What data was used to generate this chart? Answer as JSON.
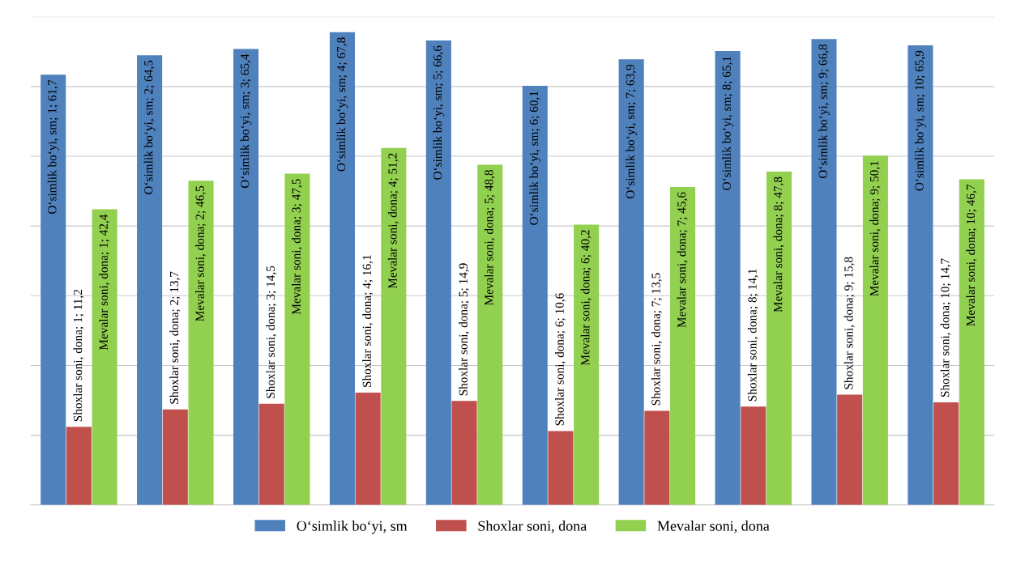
{
  "chart_data": {
    "type": "bar",
    "categories": [
      null,
      null,
      null,
      null,
      null,
      null,
      null,
      null,
      null,
      null
    ],
    "series": [
      {
        "name": "O‘simlik bo‘yi, sm",
        "color": "#4f81bd",
        "values": [
          61.7,
          64.5,
          65.4,
          67.8,
          66.6,
          60.1,
          63.9,
          65.1,
          66.8,
          65.9
        ],
        "value_labels": [
          "O‘simlik bo‘yi, sm; 1; 61,7",
          "O‘simlik bo‘yi, sm; 2; 64,5",
          "O‘simlik bo‘yi, sm; 3; 65,4",
          "O‘simlik bo‘yi, sm; 4; 67,8",
          "O‘simlik bo‘yi, sm; 5; 66,6",
          "O‘simlik bo‘yi, sm; 6; 60,1",
          "O‘simlik bo‘yi, sm; 7; 63,9",
          "O‘simlik bo‘yi, sm; 8; 65,1",
          "O‘simlik bo‘yi, sm; 9; 66,8",
          "O‘simlik bo‘yi, sm; 10; 65,9"
        ]
      },
      {
        "name": "Shoxlar soni, dona",
        "color": "#c0504d",
        "values": [
          11.2,
          13.7,
          14.5,
          16.1,
          14.9,
          10.6,
          13.5,
          14.1,
          15.8,
          14.7
        ],
        "value_labels": [
          "Shoxlar soni, dona; 1; 11,2",
          "Shoxlar soni, dona; 2; 13,7",
          "Shoxlar soni, dona; 3; 14,5",
          "Shoxlar soni, dona; 4; 16,1",
          "Shoxlar soni, dona; 5; 14,9",
          "Shoxlar soni, dona; 6; 10,6",
          "Shoxlar soni, dona; 7; 13,5",
          "Shoxlar soni, dona; 8; 14,1",
          "Shoxlar soni, dona; 9; 15,8",
          "Shoxlar soni, dona; 10; 14,7"
        ]
      },
      {
        "name": "Mevalar soni, dona",
        "color": "#92d050",
        "values": [
          42.4,
          46.5,
          47.5,
          51.2,
          48.8,
          40.2,
          45.6,
          47.8,
          50.1,
          46.7
        ],
        "value_labels": [
          "Mevalar soni, dona; 1; 42,4",
          "Mevalar soni, dona; 2; 46,5",
          "Mevalar soni, dona; 3; 47,5",
          "Mevalar soni, dona; 4; 51,2",
          "Mevalar soni, dona; 5; 48,8",
          "Mevalar soni, dona; 6; 40,2",
          "Mevalar soni, dona; 7; 45,6",
          "Mevalar soni, dona; 8; 47,8",
          "Mevalar soni, dona; 9; 50,1",
          "Mevalar soni, dona; 10; 46,7"
        ]
      }
    ],
    "ylim": [
      0,
      70
    ],
    "yticks": [
      {
        "value": 0,
        "label": null
      },
      {
        "value": 10,
        "label": null
      },
      {
        "value": 20,
        "label": null
      },
      {
        "value": 30,
        "label": null
      },
      {
        "value": 40,
        "label": null
      },
      {
        "value": 50,
        "label": null
      },
      {
        "value": 60,
        "label": null
      },
      {
        "value": 70,
        "label": null
      }
    ],
    "grid": "y",
    "legend": "bottom"
  }
}
